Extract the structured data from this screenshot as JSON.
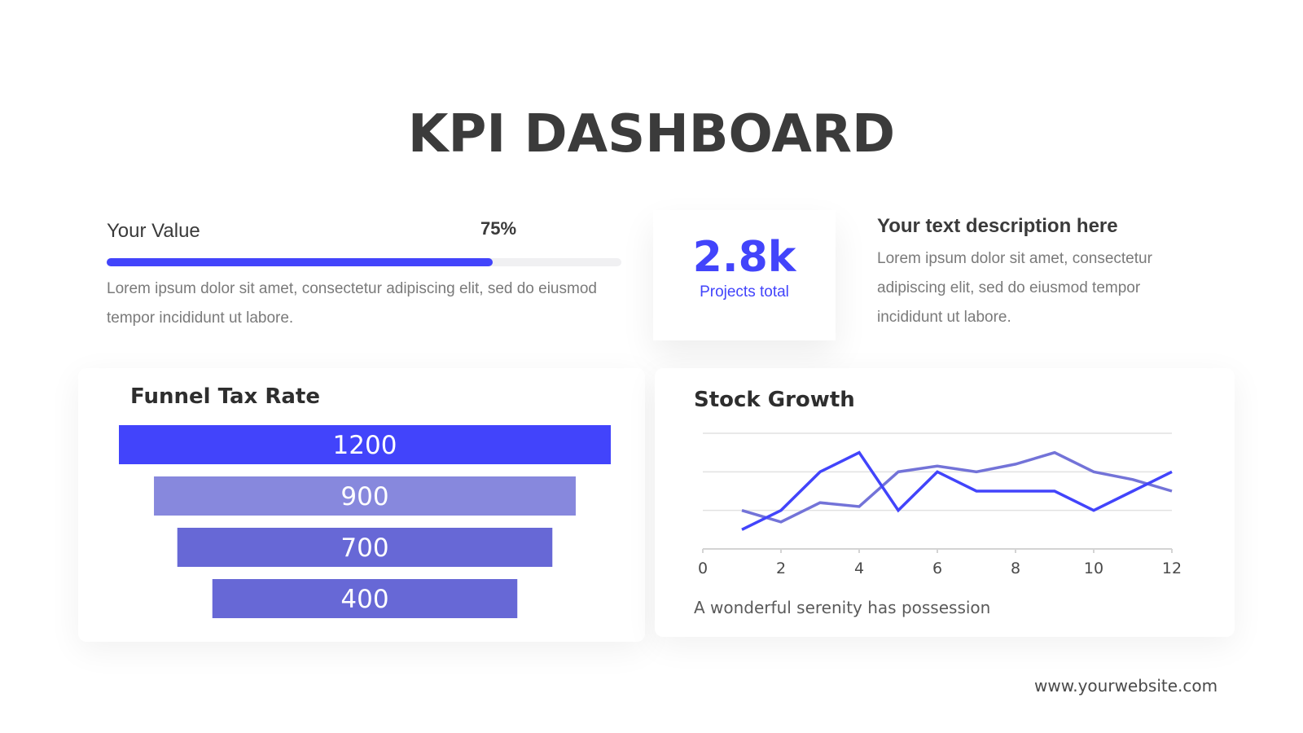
{
  "title": "KPI DASHBOARD",
  "progress": {
    "label": "Your Value",
    "percent_text": "75%",
    "percent": 75,
    "description": "Lorem ipsum dolor sit amet, consectetur adipiscing elit, sed do eiusmod tempor incididunt ut labore."
  },
  "stat": {
    "value": "2.8k",
    "label": "Projects total"
  },
  "description": {
    "heading": "Your text description here",
    "body": "Lorem ipsum dolor sit amet, consectetur adipiscing elit, sed do eiusmod tempor incididunt ut labore."
  },
  "funnel": {
    "title": "Funnel Tax Rate"
  },
  "stock": {
    "title": "Stock Growth",
    "caption": "A wonderful serenity has possession"
  },
  "footer": {
    "url": "www.yourwebsite.com"
  },
  "colors": {
    "accent": "#4244fb",
    "funnel": [
      "#4244fb",
      "#8788dd",
      "#6768d6",
      "#6768d6"
    ],
    "series": [
      "#4244fb",
      "#7373d8"
    ]
  },
  "chart_data": [
    {
      "type": "bar",
      "title": "Funnel Tax Rate",
      "categories": [
        "",
        "",
        "",
        ""
      ],
      "values": [
        1200,
        900,
        700,
        400
      ],
      "data_labels": [
        "1200",
        "900",
        "700",
        "400"
      ]
    },
    {
      "type": "line",
      "title": "Stock Growth",
      "xlabel": "",
      "ylabel": "",
      "xlim": [
        0,
        12
      ],
      "ylim": [
        0,
        3
      ],
      "xticks": [
        "0",
        "2",
        "4",
        "6",
        "8",
        "10",
        "12"
      ],
      "grid": true,
      "series": [
        {
          "x": [
            1,
            2,
            3,
            4,
            5,
            6,
            7,
            8,
            9,
            10,
            11,
            12
          ],
          "values": [
            0.5,
            1.0,
            2.0,
            2.5,
            1.0,
            2.0,
            1.5,
            1.5,
            1.5,
            1.0,
            1.5,
            2.0
          ]
        },
        {
          "x": [
            1,
            2,
            3,
            4,
            5,
            6,
            7,
            8,
            9,
            10,
            11,
            12
          ],
          "values": [
            1.0,
            0.7,
            1.2,
            1.1,
            2.0,
            2.15,
            2.0,
            2.2,
            2.5,
            2.0,
            1.8,
            1.5
          ]
        }
      ]
    }
  ]
}
